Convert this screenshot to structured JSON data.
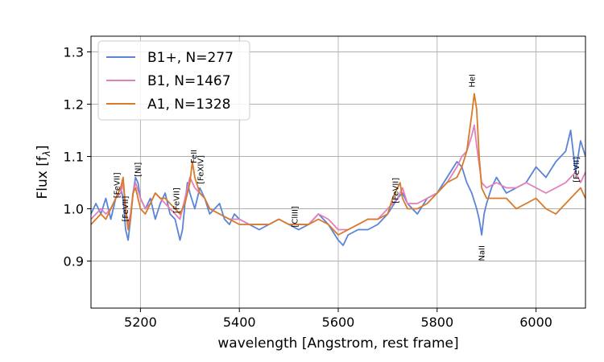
{
  "chart_data": {
    "type": "line",
    "xlabel": "wavelength [Angstrom, rest frame]",
    "ylabel": "Flux [f",
    "ylabel_sub": "λ",
    "ylabel_close": "]",
    "xlim": [
      5100,
      6100
    ],
    "ylim": [
      0.81,
      1.33
    ],
    "xticks": [
      5200,
      5400,
      5600,
      5800,
      6000
    ],
    "yticks": [
      0.9,
      1.0,
      1.1,
      1.2,
      1.3
    ],
    "xtick_labels": [
      "5200",
      "5400",
      "5600",
      "5800",
      "6000"
    ],
    "ytick_labels": [
      "0.9",
      "1.0",
      "1.1",
      "1.2",
      "1.3"
    ],
    "grid": true,
    "legend_position": "top-left",
    "legend": [
      "B1+, N=277",
      "B1, N=1467",
      "A1, N=1328"
    ],
    "series": [
      {
        "name": "B1+, N=277",
        "color": "#5b84d8",
        "x": [
          5100,
          5110,
          5120,
          5130,
          5140,
          5150,
          5160,
          5165,
          5170,
          5175,
          5180,
          5185,
          5190,
          5195,
          5200,
          5210,
          5220,
          5230,
          5240,
          5250,
          5260,
          5270,
          5280,
          5285,
          5290,
          5295,
          5300,
          5310,
          5320,
          5330,
          5340,
          5350,
          5360,
          5370,
          5380,
          5390,
          5400,
          5420,
          5440,
          5460,
          5480,
          5500,
          5520,
          5540,
          5560,
          5580,
          5600,
          5610,
          5620,
          5640,
          5660,
          5680,
          5700,
          5720,
          5730,
          5740,
          5760,
          5780,
          5800,
          5820,
          5840,
          5850,
          5860,
          5870,
          5880,
          5885,
          5890,
          5895,
          5900,
          5910,
          5920,
          5940,
          5960,
          5980,
          6000,
          6020,
          6040,
          6060,
          6070,
          6080,
          6090,
          6100
        ],
        "y": [
          0.99,
          1.01,
          0.99,
          1.02,
          0.98,
          1.02,
          1.04,
          1.02,
          0.96,
          0.94,
          0.98,
          1.03,
          1.06,
          1.05,
          1.02,
          1.0,
          1.02,
          0.98,
          1.01,
          1.03,
          0.99,
          0.98,
          0.94,
          0.96,
          1.01,
          1.05,
          1.03,
          1.0,
          1.04,
          1.02,
          0.99,
          1.0,
          1.01,
          0.98,
          0.97,
          0.99,
          0.98,
          0.97,
          0.96,
          0.97,
          0.98,
          0.97,
          0.96,
          0.97,
          0.99,
          0.97,
          0.94,
          0.93,
          0.95,
          0.96,
          0.96,
          0.97,
          0.99,
          1.02,
          1.03,
          1.01,
          0.99,
          1.02,
          1.03,
          1.06,
          1.09,
          1.08,
          1.05,
          1.03,
          1.0,
          0.98,
          0.95,
          0.99,
          1.01,
          1.04,
          1.06,
          1.03,
          1.04,
          1.05,
          1.08,
          1.06,
          1.09,
          1.11,
          1.15,
          1.07,
          1.13,
          1.1
        ]
      },
      {
        "name": "B1, N=1467",
        "color": "#e37fba",
        "x": [
          5100,
          5110,
          5120,
          5130,
          5140,
          5150,
          5160,
          5165,
          5170,
          5175,
          5180,
          5185,
          5190,
          5200,
          5210,
          5220,
          5230,
          5240,
          5250,
          5260,
          5270,
          5280,
          5290,
          5300,
          5310,
          5320,
          5330,
          5340,
          5360,
          5380,
          5400,
          5420,
          5440,
          5460,
          5480,
          5500,
          5520,
          5540,
          5560,
          5580,
          5600,
          5620,
          5640,
          5660,
          5680,
          5700,
          5720,
          5730,
          5740,
          5760,
          5780,
          5800,
          5820,
          5840,
          5850,
          5860,
          5870,
          5875,
          5880,
          5890,
          5900,
          5920,
          5940,
          5960,
          5980,
          6000,
          6020,
          6040,
          6060,
          6080,
          6090,
          6100
        ],
        "y": [
          0.98,
          0.99,
          1.0,
          0.99,
          1.0,
          1.02,
          1.03,
          1.05,
          1.0,
          0.97,
          0.99,
          1.03,
          1.05,
          1.02,
          1.0,
          1.01,
          1.03,
          1.02,
          1.01,
          1.0,
          0.99,
          0.98,
          1.02,
          1.06,
          1.04,
          1.03,
          1.02,
          1.0,
          0.99,
          0.98,
          0.98,
          0.97,
          0.97,
          0.97,
          0.98,
          0.97,
          0.97,
          0.97,
          0.99,
          0.98,
          0.96,
          0.96,
          0.97,
          0.98,
          0.98,
          1.0,
          1.02,
          1.04,
          1.01,
          1.01,
          1.02,
          1.03,
          1.05,
          1.08,
          1.1,
          1.11,
          1.14,
          1.16,
          1.12,
          1.05,
          1.04,
          1.05,
          1.04,
          1.04,
          1.05,
          1.04,
          1.03,
          1.04,
          1.05,
          1.07,
          1.05,
          1.07
        ]
      },
      {
        "name": "A1, N=1328",
        "color": "#d87a28",
        "x": [
          5100,
          5110,
          5120,
          5130,
          5140,
          5150,
          5160,
          5165,
          5170,
          5175,
          5180,
          5185,
          5190,
          5200,
          5210,
          5220,
          5230,
          5240,
          5250,
          5260,
          5270,
          5280,
          5290,
          5300,
          5305,
          5310,
          5320,
          5330,
          5340,
          5360,
          5380,
          5400,
          5420,
          5440,
          5460,
          5480,
          5500,
          5520,
          5540,
          5560,
          5580,
          5600,
          5620,
          5640,
          5660,
          5680,
          5700,
          5710,
          5720,
          5725,
          5730,
          5740,
          5760,
          5780,
          5800,
          5820,
          5840,
          5850,
          5860,
          5870,
          5875,
          5880,
          5885,
          5890,
          5900,
          5920,
          5940,
          5960,
          5980,
          6000,
          6020,
          6040,
          6060,
          6080,
          6090,
          6100
        ],
        "y": [
          0.97,
          0.98,
          0.99,
          0.98,
          1.0,
          1.02,
          1.04,
          1.06,
          1.0,
          0.96,
          0.98,
          1.03,
          1.04,
          1.0,
          0.99,
          1.01,
          1.03,
          1.02,
          1.02,
          1.01,
          1.0,
          0.99,
          1.01,
          1.05,
          1.09,
          1.06,
          1.03,
          1.02,
          1.0,
          0.99,
          0.98,
          0.97,
          0.97,
          0.97,
          0.97,
          0.98,
          0.97,
          0.97,
          0.97,
          0.98,
          0.97,
          0.95,
          0.96,
          0.97,
          0.98,
          0.98,
          0.99,
          1.02,
          1.04,
          1.05,
          1.02,
          1.0,
          1.0,
          1.01,
          1.03,
          1.05,
          1.06,
          1.08,
          1.11,
          1.18,
          1.22,
          1.19,
          1.1,
          1.04,
          1.02,
          1.02,
          1.02,
          1.0,
          1.01,
          1.02,
          1.0,
          0.99,
          1.01,
          1.03,
          1.04,
          1.02
        ]
      }
    ],
    "annotations": [
      {
        "text": "[FeVII]",
        "x": 5158,
        "y": 1.045
      },
      {
        "text": "[FeVII]",
        "x": 5175,
        "y": 1.0
      },
      {
        "text": "[NI]",
        "x": 5200,
        "y": 1.075
      },
      {
        "text": "[FeVII]",
        "x": 5278,
        "y": 1.016
      },
      {
        "text": "FeII",
        "x": 5313,
        "y": 1.1
      },
      {
        "text": "[FeXIV]",
        "x": 5327,
        "y": 1.075
      },
      {
        "text": "[ClIII]",
        "x": 5518,
        "y": 0.985
      },
      {
        "text": "[FeVII]",
        "x": 5721,
        "y": 1.035
      },
      {
        "text": "HeI",
        "x": 5876,
        "y": 1.245
      },
      {
        "text": "NaII",
        "x": 5896,
        "y": 0.915
      },
      {
        "text": "[FeVII]",
        "x": 6087,
        "y": 1.075
      }
    ]
  }
}
